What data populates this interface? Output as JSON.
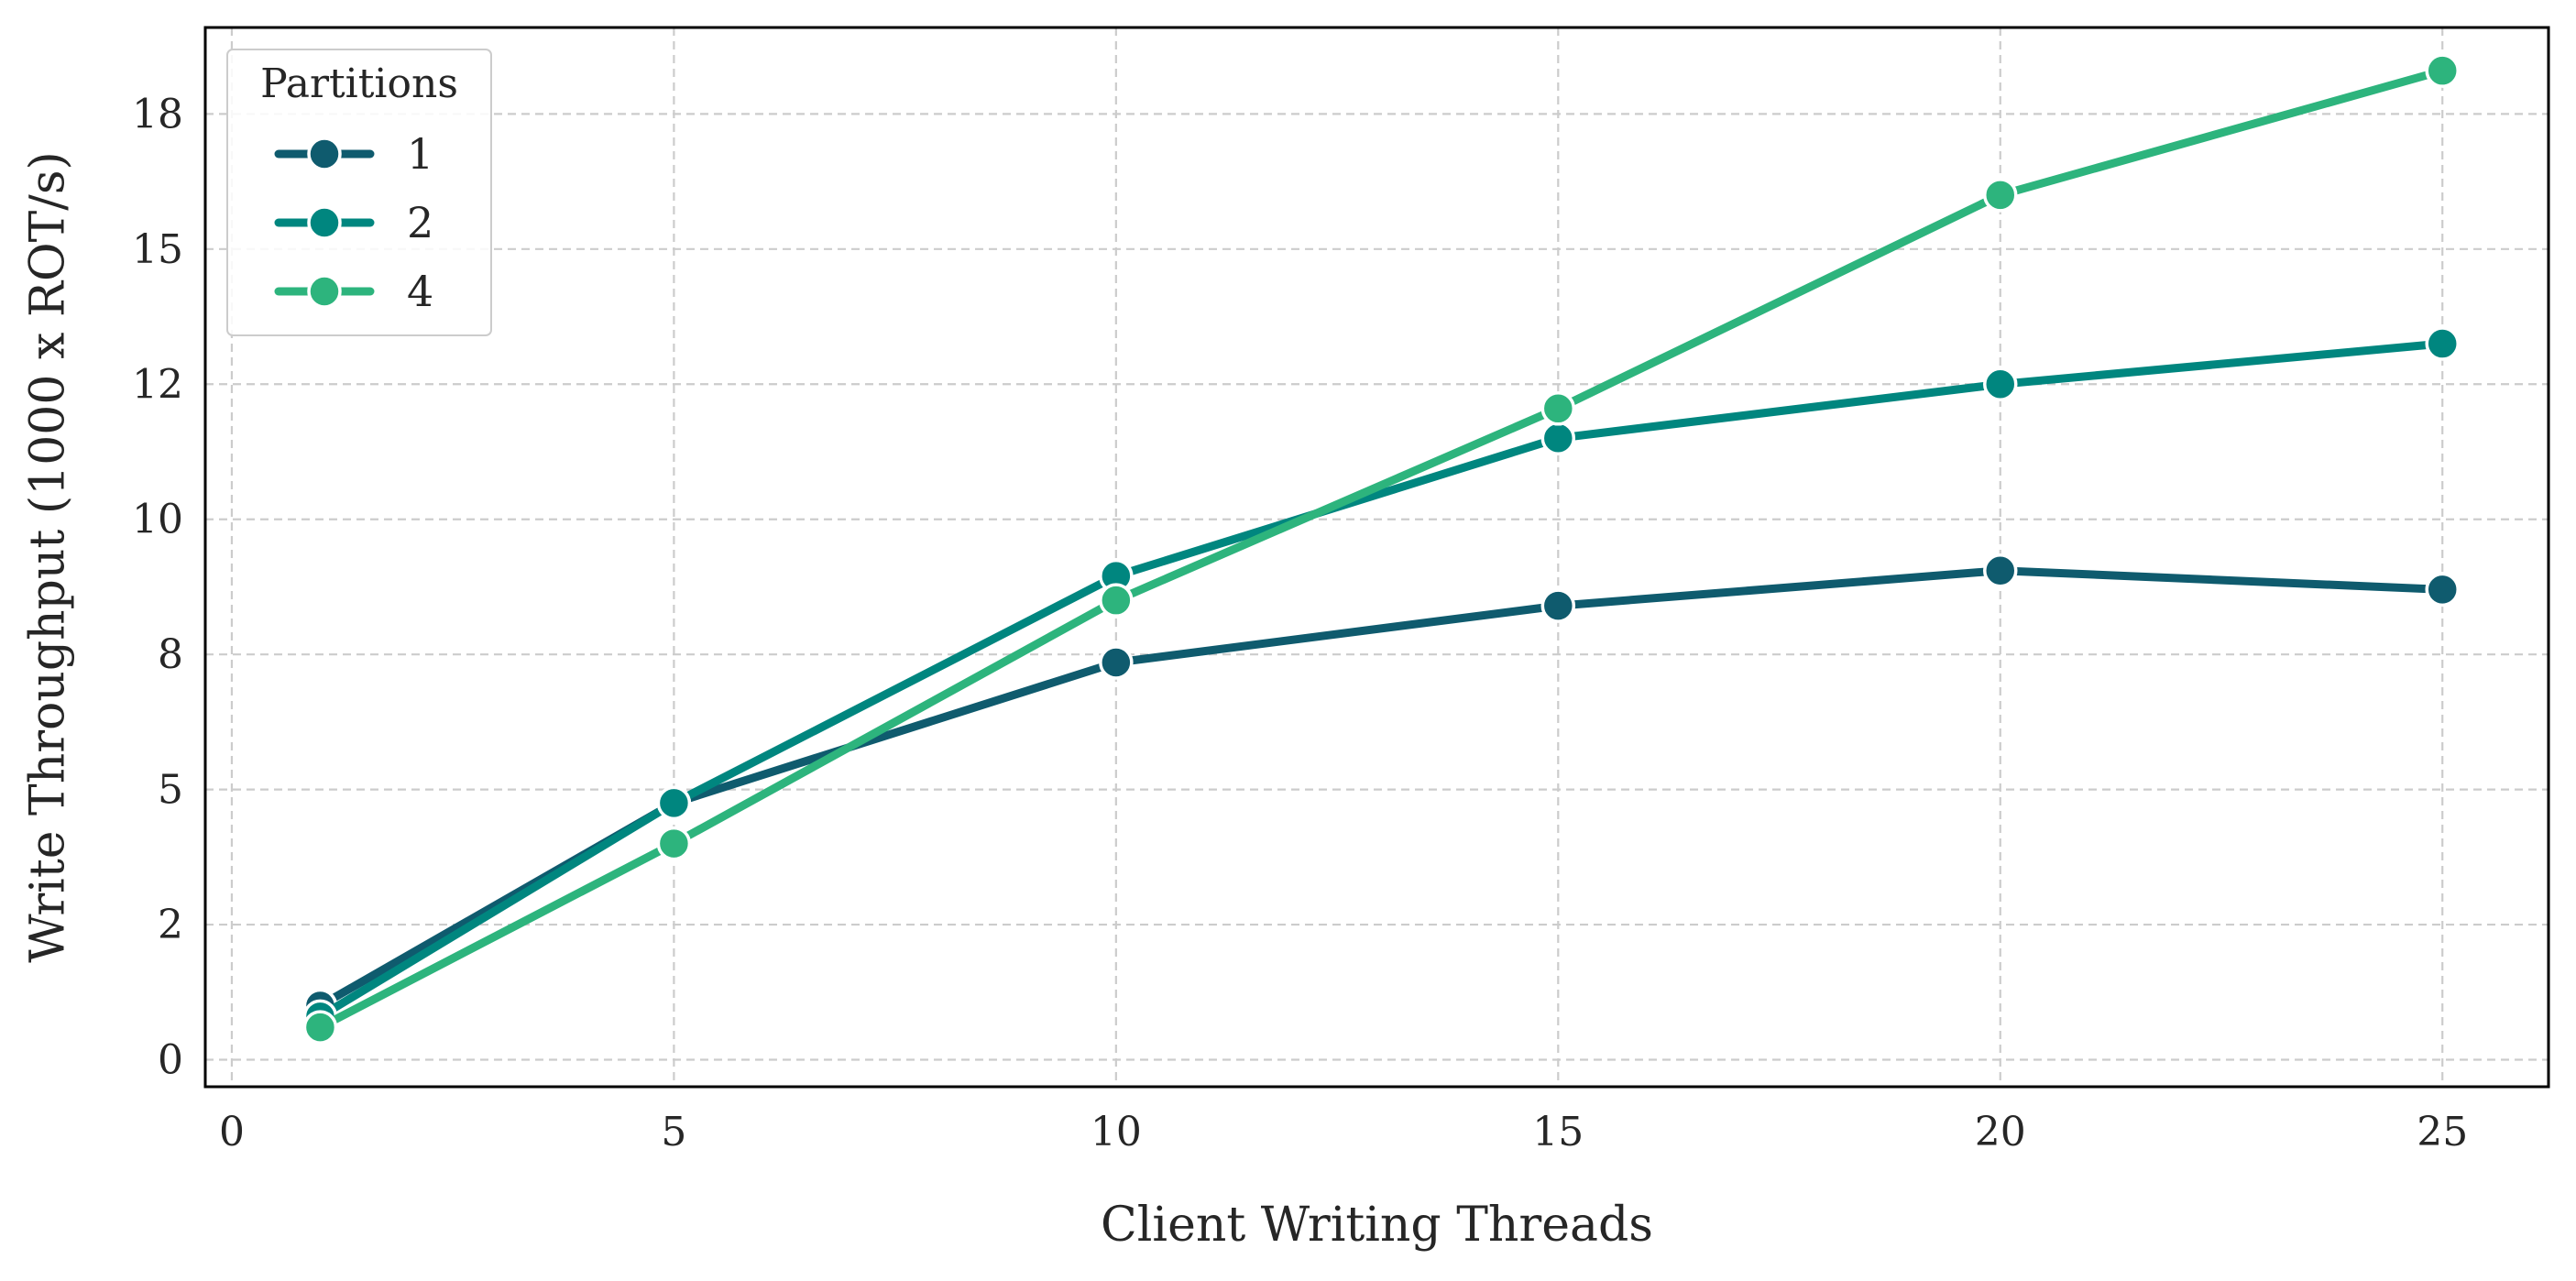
{
  "chart_data": {
    "type": "line",
    "xlabel": "Client Writing Threads",
    "ylabel": "Write Throughput (1000 x ROT/s)",
    "x": [
      1,
      5,
      10,
      15,
      20,
      25
    ],
    "xlim": [
      -0.3,
      26.2
    ],
    "ylim": [
      -0.5,
      19.1
    ],
    "xticks": [
      0,
      5,
      10,
      15,
      20,
      25
    ],
    "xtick_labels": [
      "0",
      "5",
      "10",
      "15",
      "20",
      "25"
    ],
    "yticks": [
      0,
      2.5,
      5,
      7.5,
      10,
      12.5,
      15,
      17.5
    ],
    "ytick_labels": [
      "0",
      "2",
      "5",
      "8",
      "10",
      "12",
      "15",
      "18"
    ],
    "grid": true,
    "legend": {
      "title": "Partitions",
      "placement": "top-left"
    },
    "series": [
      {
        "name": "1",
        "color": "#0f5b6e",
        "values": [
          1.0,
          4.75,
          7.35,
          8.4,
          9.05,
          8.7
        ]
      },
      {
        "name": "2",
        "color": "#00867f",
        "values": [
          0.8,
          4.75,
          8.95,
          11.5,
          12.5,
          13.25
        ]
      },
      {
        "name": "4",
        "color": "#2db47d",
        "values": [
          0.6,
          4.0,
          8.5,
          12.05,
          16.0,
          18.3
        ]
      }
    ]
  }
}
